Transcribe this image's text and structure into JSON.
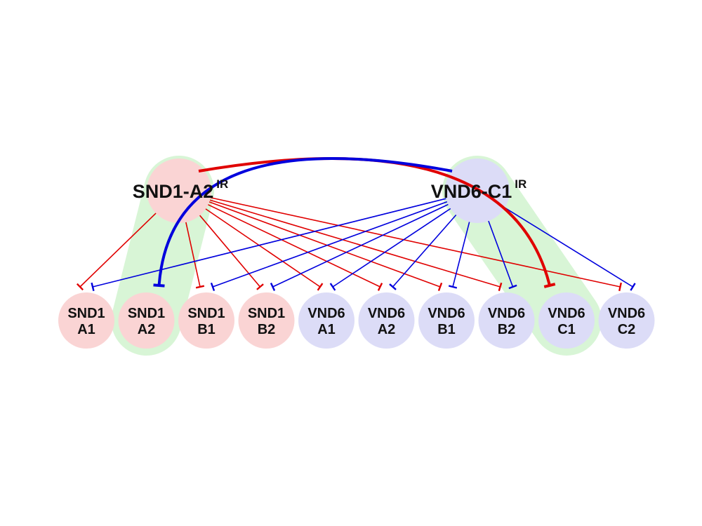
{
  "colors": {
    "snd_node": "#fad4d4",
    "vnd_node": "#dcdcf7",
    "highlight": "#d8f5d6",
    "snd_edge": "#e00000",
    "vnd_edge": "#0000dd"
  },
  "regulators": [
    {
      "id": "snd1a2ir",
      "name": "SND1-A2",
      "sup": "IR",
      "family": "snd"
    },
    {
      "id": "vnd6c1ir",
      "name": "VND6-C1",
      "sup": "IR",
      "family": "vnd"
    }
  ],
  "targets": [
    {
      "id": "snd1a1",
      "line1": "SND1",
      "line2": "A1",
      "family": "snd"
    },
    {
      "id": "snd1a2",
      "line1": "SND1",
      "line2": "A2",
      "family": "snd"
    },
    {
      "id": "snd1b1",
      "line1": "SND1",
      "line2": "B1",
      "family": "snd"
    },
    {
      "id": "snd1b2",
      "line1": "SND1",
      "line2": "B2",
      "family": "snd"
    },
    {
      "id": "vnd6a1",
      "line1": "VND6",
      "line2": "A1",
      "family": "vnd"
    },
    {
      "id": "vnd6a2",
      "line1": "VND6",
      "line2": "A2",
      "family": "vnd"
    },
    {
      "id": "vnd6b1",
      "line1": "VND6",
      "line2": "B1",
      "family": "vnd"
    },
    {
      "id": "vnd6b2",
      "line1": "VND6",
      "line2": "B2",
      "family": "vnd"
    },
    {
      "id": "vnd6c1",
      "line1": "VND6",
      "line2": "C1",
      "family": "vnd"
    },
    {
      "id": "vnd6c2",
      "line1": "VND6",
      "line2": "C2",
      "family": "vnd"
    }
  ],
  "edges": [
    {
      "from": "snd1a2ir",
      "to": "snd1a1",
      "type": "repression",
      "color": "snd_edge"
    },
    {
      "from": "snd1a2ir",
      "to": "snd1b1",
      "type": "repression",
      "color": "snd_edge"
    },
    {
      "from": "snd1a2ir",
      "to": "snd1b2",
      "type": "repression",
      "color": "snd_edge"
    },
    {
      "from": "snd1a2ir",
      "to": "vnd6a1",
      "type": "repression",
      "color": "snd_edge"
    },
    {
      "from": "snd1a2ir",
      "to": "vnd6a2",
      "type": "repression",
      "color": "snd_edge"
    },
    {
      "from": "snd1a2ir",
      "to": "vnd6b1",
      "type": "repression",
      "color": "snd_edge"
    },
    {
      "from": "snd1a2ir",
      "to": "vnd6b2",
      "type": "repression",
      "color": "snd_edge"
    },
    {
      "from": "snd1a2ir",
      "to": "vnd6c2",
      "type": "repression",
      "color": "snd_edge"
    },
    {
      "from": "vnd6c1ir",
      "to": "snd1a1",
      "type": "repression",
      "color": "vnd_edge"
    },
    {
      "from": "vnd6c1ir",
      "to": "snd1b1",
      "type": "repression",
      "color": "vnd_edge"
    },
    {
      "from": "vnd6c1ir",
      "to": "snd1b2",
      "type": "repression",
      "color": "vnd_edge"
    },
    {
      "from": "vnd6c1ir",
      "to": "vnd6a1",
      "type": "repression",
      "color": "vnd_edge"
    },
    {
      "from": "vnd6c1ir",
      "to": "vnd6a2",
      "type": "repression",
      "color": "vnd_edge"
    },
    {
      "from": "vnd6c1ir",
      "to": "vnd6b1",
      "type": "repression",
      "color": "vnd_edge"
    },
    {
      "from": "vnd6c1ir",
      "to": "vnd6b2",
      "type": "repression",
      "color": "vnd_edge"
    },
    {
      "from": "vnd6c1ir",
      "to": "vnd6c2",
      "type": "repression",
      "color": "vnd_edge"
    },
    {
      "from": "snd1a2ir",
      "to": "vnd6c1",
      "type": "repression",
      "color": "snd_edge",
      "curved": true,
      "bold": true
    },
    {
      "from": "vnd6c1ir",
      "to": "snd1a2",
      "type": "repression",
      "color": "vnd_edge",
      "curved": true,
      "bold": true
    }
  ],
  "highlighted_pairs": [
    {
      "regulator": "snd1a2ir",
      "target": "snd1a2"
    },
    {
      "regulator": "vnd6c1ir",
      "target": "vnd6c1"
    }
  ]
}
